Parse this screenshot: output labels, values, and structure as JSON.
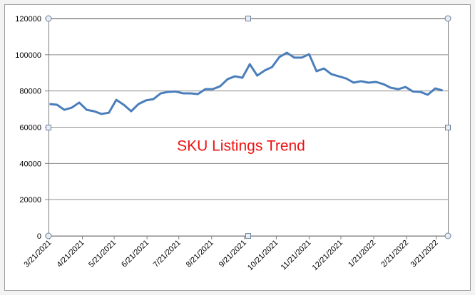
{
  "chart_data": {
    "type": "line",
    "title": "SKU Listings Trend",
    "color": "#4a7ebb",
    "grid": true,
    "x": [
      "2021-03-21",
      "2021-03-28",
      "2021-04-04",
      "2021-04-11",
      "2021-04-18",
      "2021-04-25",
      "2021-05-02",
      "2021-05-09",
      "2021-05-16",
      "2021-05-23",
      "2021-05-30",
      "2021-06-06",
      "2021-06-13",
      "2021-06-20",
      "2021-06-27",
      "2021-07-04",
      "2021-07-11",
      "2021-07-18",
      "2021-07-25",
      "2021-08-01",
      "2021-08-08",
      "2021-08-15",
      "2021-08-22",
      "2021-08-29",
      "2021-09-05",
      "2021-09-12",
      "2021-09-19",
      "2021-09-26",
      "2021-10-03",
      "2021-10-10",
      "2021-10-17",
      "2021-10-24",
      "2021-10-31",
      "2021-11-07",
      "2021-11-14",
      "2021-11-21",
      "2021-11-28",
      "2021-12-05",
      "2021-12-12",
      "2021-12-19",
      "2021-12-26",
      "2022-01-02",
      "2022-01-09",
      "2022-01-16",
      "2022-01-23",
      "2022-01-30",
      "2022-02-06",
      "2022-02-13",
      "2022-02-20",
      "2022-02-27",
      "2022-03-06",
      "2022-03-13",
      "2022-03-20",
      "2022-03-27"
    ],
    "values": [
      72800,
      72400,
      69600,
      70800,
      73600,
      69600,
      68800,
      67300,
      68000,
      75100,
      72400,
      68800,
      72800,
      74800,
      75500,
      78700,
      79500,
      79700,
      78700,
      78700,
      78300,
      81000,
      81000,
      82600,
      86500,
      88100,
      87300,
      94800,
      88500,
      91300,
      93200,
      98800,
      101100,
      98400,
      98400,
      100300,
      90900,
      92400,
      89300,
      88100,
      86900,
      84600,
      85400,
      84600,
      85000,
      83800,
      81800,
      81000,
      82200,
      79700,
      79500,
      77900,
      81400,
      80300
    ],
    "xlim": [
      "2021-03-20",
      "2022-04-01"
    ],
    "xticks": [
      {
        "value": "2021-03-21",
        "label": "3/21/2021"
      },
      {
        "value": "2021-04-21",
        "label": "4/21/2021"
      },
      {
        "value": "2021-05-21",
        "label": "5/21/2021"
      },
      {
        "value": "2021-06-21",
        "label": "6/21/2021"
      },
      {
        "value": "2021-07-21",
        "label": "7/21/2021"
      },
      {
        "value": "2021-08-21",
        "label": "8/21/2021"
      },
      {
        "value": "2021-09-21",
        "label": "9/21/2021"
      },
      {
        "value": "2021-10-21",
        "label": "10/21/2021"
      },
      {
        "value": "2021-11-21",
        "label": "11/21/2021"
      },
      {
        "value": "2021-12-21",
        "label": "12/21/2021"
      },
      {
        "value": "2022-01-21",
        "label": "1/21/2022"
      },
      {
        "value": "2022-02-21",
        "label": "2/21/2022"
      },
      {
        "value": "2022-03-21",
        "label": "3/21/2022"
      }
    ],
    "ylim": [
      0,
      120000
    ],
    "yticks": [
      0,
      20000,
      40000,
      60000,
      80000,
      100000,
      120000
    ]
  }
}
